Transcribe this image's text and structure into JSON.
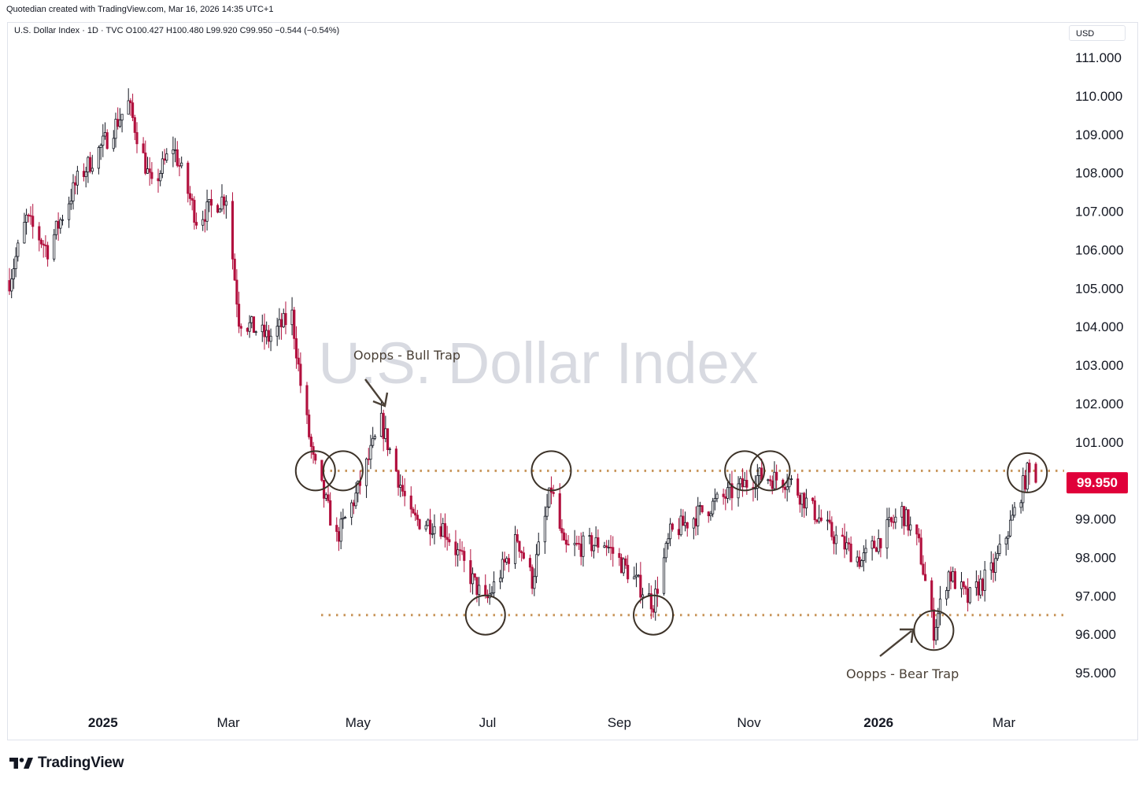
{
  "header": {
    "caption": "Quotedian created with TradingView.com, Mar 16, 2026 14:35 UTC+1"
  },
  "legend": {
    "text": "U.S. Dollar Index · 1D · TVC  O100.427  H100.480  L99.920  C99.950  −0.544 (−0.54%)"
  },
  "currency": "USD",
  "watermark": "U.S. Dollar Index",
  "footer": {
    "brand": "TradingView",
    "logo_icon": "tradingview-logo-icon"
  },
  "colors": {
    "up": "#131722",
    "down": "#b2103e",
    "level_line": "#c8955a",
    "price_badge": "#e0003a",
    "annotation": "#4a4036"
  },
  "chart_data": {
    "type": "candlestick",
    "symbol": "U.S. Dollar Index",
    "interval": "1D",
    "ylim": [
      94.3,
      111.6
    ],
    "y_ticks": [
      "111.000",
      "110.000",
      "109.000",
      "108.000",
      "107.000",
      "106.000",
      "105.000",
      "104.000",
      "103.000",
      "102.000",
      "101.000",
      "99.000",
      "98.000",
      "97.000",
      "96.000",
      "95.000"
    ],
    "x_labels": [
      "2025",
      "Mar",
      "May",
      "Jul",
      "Sep",
      "Nov",
      "2026",
      "Mar"
    ],
    "x_label_dates": [
      "2025-01-01",
      "2025-03-01",
      "2025-05-01",
      "2025-07-01",
      "2025-09-01",
      "2025-11-01",
      "2026-01-01",
      "2026-03-01"
    ],
    "date_range": [
      "2024-11-18",
      "2026-03-16"
    ],
    "last_price": {
      "value": 99.95,
      "label": "99.950"
    },
    "levels": [
      {
        "value": 100.25,
        "style": "dotted"
      },
      {
        "value": 96.5,
        "style": "dotted"
      }
    ],
    "annotations": [
      {
        "text": "Oopps - Bull Trap",
        "date": "2025-04-21",
        "value": 101.0
      },
      {
        "text": "Oopps - Bear Trap",
        "date": "2026-01-27",
        "value": 95.7
      }
    ],
    "circles": [
      {
        "date": "2025-04-11",
        "value": 100.25
      },
      {
        "date": "2025-04-24",
        "value": 100.25
      },
      {
        "date": "2025-06-30",
        "value": 96.5
      },
      {
        "date": "2025-07-31",
        "value": 100.25
      },
      {
        "date": "2025-09-17",
        "value": 96.5
      },
      {
        "date": "2025-10-30",
        "value": 100.25
      },
      {
        "date": "2025-11-11",
        "value": 100.25
      },
      {
        "date": "2026-01-27",
        "value": 96.1
      },
      {
        "date": "2026-03-12",
        "value": 100.2
      }
    ],
    "path_anchors": [
      {
        "date": "2024-11-18",
        "value": 105.2
      },
      {
        "date": "2024-11-26",
        "value": 106.8
      },
      {
        "date": "2024-12-06",
        "value": 106.0
      },
      {
        "date": "2024-12-20",
        "value": 107.8
      },
      {
        "date": "2025-01-03",
        "value": 108.9
      },
      {
        "date": "2025-01-13",
        "value": 109.8
      },
      {
        "date": "2025-01-24",
        "value": 107.6
      },
      {
        "date": "2025-02-03",
        "value": 108.7
      },
      {
        "date": "2025-02-14",
        "value": 106.8
      },
      {
        "date": "2025-02-28",
        "value": 107.4
      },
      {
        "date": "2025-03-06",
        "value": 104.2
      },
      {
        "date": "2025-03-20",
        "value": 103.7
      },
      {
        "date": "2025-03-31",
        "value": 104.3
      },
      {
        "date": "2025-04-04",
        "value": 102.5
      },
      {
        "date": "2025-04-10",
        "value": 100.5
      },
      {
        "date": "2025-04-21",
        "value": 98.5
      },
      {
        "date": "2025-04-30",
        "value": 99.6
      },
      {
        "date": "2025-05-12",
        "value": 101.5
      },
      {
        "date": "2025-05-26",
        "value": 99.0
      },
      {
        "date": "2025-06-10",
        "value": 98.8
      },
      {
        "date": "2025-06-30",
        "value": 96.8
      },
      {
        "date": "2025-07-15",
        "value": 98.5
      },
      {
        "date": "2025-07-22",
        "value": 97.4
      },
      {
        "date": "2025-07-31",
        "value": 99.8
      },
      {
        "date": "2025-08-06",
        "value": 98.2
      },
      {
        "date": "2025-08-25",
        "value": 98.4
      },
      {
        "date": "2025-09-17",
        "value": 96.8
      },
      {
        "date": "2025-09-25",
        "value": 98.6
      },
      {
        "date": "2025-10-10",
        "value": 99.2
      },
      {
        "date": "2025-10-30",
        "value": 99.9
      },
      {
        "date": "2025-11-05",
        "value": 100.1
      },
      {
        "date": "2025-11-20",
        "value": 100.0
      },
      {
        "date": "2025-12-10",
        "value": 98.6
      },
      {
        "date": "2025-12-24",
        "value": 97.9
      },
      {
        "date": "2026-01-12",
        "value": 99.2
      },
      {
        "date": "2026-01-20",
        "value": 98.3
      },
      {
        "date": "2026-01-27",
        "value": 96.1
      },
      {
        "date": "2026-02-03",
        "value": 97.6
      },
      {
        "date": "2026-02-12",
        "value": 96.9
      },
      {
        "date": "2026-02-24",
        "value": 97.7
      },
      {
        "date": "2026-03-05",
        "value": 99.0
      },
      {
        "date": "2026-03-12",
        "value": 100.2
      },
      {
        "date": "2026-03-16",
        "value": 99.95
      }
    ],
    "last_bar": {
      "open": 100.427,
      "high": 100.48,
      "low": 99.92,
      "close": 99.95
    }
  }
}
